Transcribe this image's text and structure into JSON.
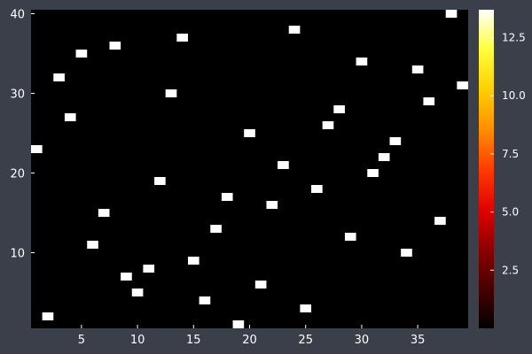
{
  "chart_data": {
    "type": "heatmap",
    "title": "",
    "xlabel": "",
    "ylabel": "",
    "xlim": [
      0.5,
      39.5
    ],
    "ylim": [
      0.5,
      40.5
    ],
    "x_ticks": [
      5,
      10,
      15,
      20,
      25,
      30,
      35
    ],
    "y_ticks": [
      10,
      20,
      30,
      40
    ],
    "colormap": "hot",
    "background_value": 0,
    "colorbar": {
      "range": [
        0,
        13.7
      ],
      "ticks": [
        2.5,
        5.0,
        7.5,
        10.0,
        12.5
      ],
      "tick_labels": [
        "2.5",
        "5.0",
        "7.5",
        "10.0",
        "12.5"
      ]
    },
    "points": [
      {
        "x": 1,
        "y": 23
      },
      {
        "x": 2,
        "y": 2
      },
      {
        "x": 3,
        "y": 32
      },
      {
        "x": 4,
        "y": 27
      },
      {
        "x": 5,
        "y": 35
      },
      {
        "x": 6,
        "y": 11
      },
      {
        "x": 7,
        "y": 15
      },
      {
        "x": 8,
        "y": 36
      },
      {
        "x": 9,
        "y": 7
      },
      {
        "x": 10,
        "y": 5
      },
      {
        "x": 11,
        "y": 8
      },
      {
        "x": 12,
        "y": 19
      },
      {
        "x": 13,
        "y": 30
      },
      {
        "x": 14,
        "y": 37
      },
      {
        "x": 15,
        "y": 9
      },
      {
        "x": 16,
        "y": 4
      },
      {
        "x": 17,
        "y": 13
      },
      {
        "x": 18,
        "y": 17
      },
      {
        "x": 19,
        "y": 1
      },
      {
        "x": 20,
        "y": 25
      },
      {
        "x": 21,
        "y": 6
      },
      {
        "x": 22,
        "y": 16
      },
      {
        "x": 23,
        "y": 21
      },
      {
        "x": 24,
        "y": 38
      },
      {
        "x": 25,
        "y": 3
      },
      {
        "x": 26,
        "y": 18
      },
      {
        "x": 27,
        "y": 26
      },
      {
        "x": 28,
        "y": 28
      },
      {
        "x": 29,
        "y": 12
      },
      {
        "x": 30,
        "y": 34
      },
      {
        "x": 31,
        "y": 20
      },
      {
        "x": 32,
        "y": 22
      },
      {
        "x": 33,
        "y": 24
      },
      {
        "x": 34,
        "y": 10
      },
      {
        "x": 35,
        "y": 33
      },
      {
        "x": 36,
        "y": 29
      },
      {
        "x": 37,
        "y": 14
      },
      {
        "x": 38,
        "y": 40
      },
      {
        "x": 39,
        "y": 31
      }
    ],
    "point_value": 13.7,
    "colors": {
      "background": "#3b3f4a",
      "cell_empty": "#000000",
      "cell_filled": "#ffffff",
      "text": "#ffffff"
    }
  }
}
